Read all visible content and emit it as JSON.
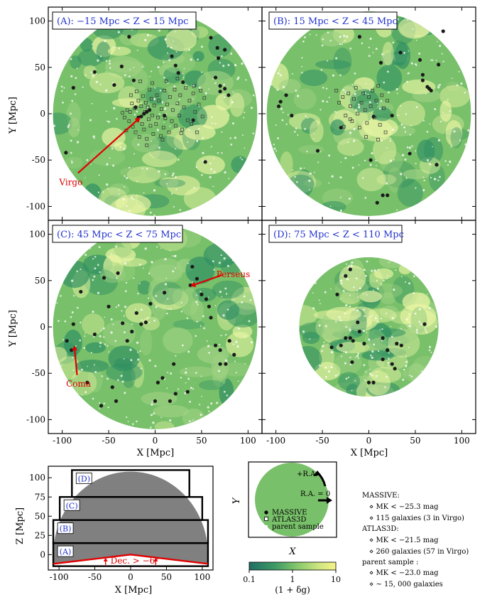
{
  "colors": {
    "field_light": "#eef7a6",
    "field_mid": "#9fd283",
    "field_green": "#79c06a",
    "field_dark": "#2f8f62",
    "massive_point": "#1a1a1a",
    "atlas_point": "#ffffff",
    "parent_point": "#ffffff",
    "arrow_red": "#e00000",
    "label_blue": "#2233cc",
    "survey_gray": "#808080"
  },
  "chart_data": {
    "type": "scatter",
    "figure_title": "",
    "axes": {
      "x_label": "X [Mpc]",
      "y_label": "Y [Mpc]",
      "xlim": [
        -115,
        115
      ],
      "ylim": [
        -115,
        115
      ],
      "x_ticks": [
        "-100",
        "-50",
        "0",
        "50",
        "100"
      ],
      "y_ticks": [
        "-100",
        "-50",
        "0",
        "50",
        "100"
      ]
    },
    "panels": [
      {
        "id": "A",
        "label": "(A):  −15 Mpc < Z < 15 Mpc",
        "circle_radius": 110,
        "massive": [
          [
            -96,
            -42
          ],
          [
            -88,
            28
          ],
          [
            -65,
            45
          ],
          [
            -44,
            31
          ],
          [
            -36,
            51
          ],
          [
            -28,
            83
          ],
          [
            -23,
            36
          ],
          [
            -21,
            7
          ],
          [
            -18,
            -4
          ],
          [
            -15,
            -3
          ],
          [
            -12,
            0
          ],
          [
            -9,
            2
          ],
          [
            -6,
            4
          ],
          [
            10,
            -2
          ],
          [
            18,
            62
          ],
          [
            22,
            52
          ],
          [
            25,
            44
          ],
          [
            30,
            34
          ],
          [
            41,
            -7
          ],
          [
            54,
            -52
          ],
          [
            60,
            82
          ],
          [
            67,
            71
          ],
          [
            68,
            60
          ],
          [
            70,
            30
          ],
          [
            70,
            24
          ],
          [
            75,
            69
          ],
          [
            75,
            27
          ],
          [
            79,
            20
          ],
          [
            65,
            39
          ]
        ],
        "atlas3d": [
          [
            -35,
            1
          ],
          [
            -33,
            -4
          ],
          [
            -30,
            4
          ],
          [
            -28,
            -8
          ],
          [
            -27,
            2
          ],
          [
            -25,
            11
          ],
          [
            -24,
            -14
          ],
          [
            -22,
            6
          ],
          [
            -21,
            -20
          ],
          [
            -20,
            24
          ],
          [
            -19,
            -7
          ],
          [
            -18,
            14
          ],
          [
            -17,
            -25
          ],
          [
            -15,
            8
          ],
          [
            -14,
            -11
          ],
          [
            -13,
            19
          ],
          [
            -12,
            -17
          ],
          [
            -11,
            2
          ],
          [
            -10,
            12
          ],
          [
            -9,
            -27
          ],
          [
            -8,
            7
          ],
          [
            -7,
            -6
          ],
          [
            -6,
            26
          ],
          [
            -5,
            -13
          ],
          [
            -4,
            16
          ],
          [
            -3,
            -2
          ],
          [
            -2,
            -22
          ],
          [
            -1,
            9
          ],
          [
            1,
            -11
          ],
          [
            2,
            20
          ],
          [
            3,
            -4
          ],
          [
            4,
            14
          ],
          [
            6,
            -24
          ],
          [
            7,
            5
          ],
          [
            9,
            -15
          ],
          [
            10,
            25
          ],
          [
            11,
            -5
          ],
          [
            13,
            10
          ],
          [
            15,
            -20
          ],
          [
            16,
            18
          ],
          [
            18,
            -8
          ],
          [
            19,
            4
          ],
          [
            21,
            26
          ],
          [
            22,
            -13
          ],
          [
            24,
            11
          ],
          [
            26,
            -2
          ],
          [
            27,
            20
          ],
          [
            29,
            -17
          ],
          [
            31,
            7
          ],
          [
            33,
            28
          ],
          [
            35,
            -7
          ],
          [
            37,
            14
          ],
          [
            39,
            -11
          ],
          [
            41,
            22
          ],
          [
            43,
            2
          ],
          [
            45,
            -20
          ],
          [
            47,
            10
          ],
          [
            49,
            25
          ],
          [
            51,
            -3
          ],
          [
            53,
            17
          ],
          [
            28,
            -21
          ],
          [
            8,
            -28
          ],
          [
            -3,
            33
          ],
          [
            12,
            35
          ],
          [
            -16,
            35
          ],
          [
            24,
            38
          ],
          [
            -31,
            -18
          ],
          [
            -26,
            20
          ],
          [
            42,
            30
          ],
          [
            -9,
            -34
          ]
        ],
        "annotation": {
          "text": "Virgo",
          "from": [
            -83,
            -64
          ],
          "to": [
            -16,
            -4
          ]
        }
      },
      {
        "id": "B",
        "label": "(B):  15 Mpc < Z < 45 Mpc",
        "circle_radius": 110,
        "massive": [
          [
            -97,
            8
          ],
          [
            -95,
            13
          ],
          [
            -89,
            20
          ],
          [
            -83,
            -2
          ],
          [
            -55,
            -40
          ],
          [
            -30,
            -15
          ],
          [
            -10,
            83
          ],
          [
            2,
            -50
          ],
          [
            5,
            -3
          ],
          [
            9,
            -96
          ],
          [
            13,
            55
          ],
          [
            15,
            -88
          ],
          [
            20,
            -88
          ],
          [
            25,
            -2
          ],
          [
            34,
            66
          ],
          [
            44,
            -43
          ],
          [
            55,
            58
          ],
          [
            58,
            42
          ],
          [
            58,
            36
          ],
          [
            63,
            29
          ],
          [
            65,
            27
          ],
          [
            67,
            25
          ],
          [
            73,
            -55
          ],
          [
            75,
            53
          ],
          [
            80,
            89
          ]
        ],
        "atlas3d": [
          [
            -35,
            25
          ],
          [
            -32,
            12
          ],
          [
            -28,
            18
          ],
          [
            -25,
            -2
          ],
          [
            -22,
            22
          ],
          [
            -20,
            8
          ],
          [
            -18,
            -8
          ],
          [
            -16,
            16
          ],
          [
            -14,
            28
          ],
          [
            -12,
            0
          ],
          [
            -10,
            -15
          ],
          [
            -8,
            12
          ],
          [
            -6,
            22
          ],
          [
            -4,
            4
          ],
          [
            -2,
            -10
          ],
          [
            0,
            18
          ],
          [
            2,
            8
          ],
          [
            4,
            25
          ],
          [
            6,
            -4
          ],
          [
            8,
            14
          ],
          [
            10,
            30
          ],
          [
            12,
            -12
          ],
          [
            14,
            20
          ],
          [
            16,
            6
          ],
          [
            18,
            -20
          ],
          [
            20,
            14
          ],
          [
            -27,
            -14
          ],
          [
            -3,
            -25
          ],
          [
            -20,
            -6
          ],
          [
            10,
            -28
          ]
        ],
        "annotation": null
      },
      {
        "id": "C",
        "label": "(C):  45 Mpc < Z < 75 Mpc",
        "circle_radius": 110,
        "massive": [
          [
            -95,
            -15
          ],
          [
            -90,
            -25
          ],
          [
            -88,
            3
          ],
          [
            -80,
            38
          ],
          [
            -73,
            -60
          ],
          [
            -65,
            -8
          ],
          [
            -58,
            -85
          ],
          [
            -55,
            53
          ],
          [
            -50,
            22
          ],
          [
            -46,
            -65
          ],
          [
            -42,
            -80
          ],
          [
            -40,
            58
          ],
          [
            -35,
            4
          ],
          [
            -30,
            -15
          ],
          [
            -25,
            -5
          ],
          [
            -20,
            15
          ],
          [
            -15,
            3
          ],
          [
            -10,
            5
          ],
          [
            -5,
            25
          ],
          [
            0,
            -80
          ],
          [
            3,
            -60
          ],
          [
            8,
            -55
          ],
          [
            10,
            37
          ],
          [
            16,
            -80
          ],
          [
            20,
            -40
          ],
          [
            22,
            -72
          ],
          [
            35,
            -70
          ],
          [
            38,
            45
          ],
          [
            40,
            65
          ],
          [
            45,
            52
          ],
          [
            50,
            35
          ],
          [
            55,
            30
          ],
          [
            58,
            22
          ],
          [
            60,
            10
          ],
          [
            65,
            -20
          ],
          [
            70,
            -25
          ],
          [
            70,
            -40
          ],
          [
            76,
            -40
          ],
          [
            80,
            -15
          ],
          [
            85,
            -30
          ]
        ],
        "atlas3d": [],
        "annotations": [
          {
            "text": "Perseus",
            "from": [
              72,
              56
            ],
            "to": [
              38,
              44
            ]
          },
          {
            "text": "Coma",
            "from": [
              -84,
              -52
            ],
            "to": [
              -87,
              -20
            ]
          }
        ]
      },
      {
        "id": "D",
        "label": "(D):  75 Mpc < Z < 110 Mpc",
        "circle_radius": 75,
        "massive": [
          [
            -30,
            -20
          ],
          [
            -25,
            -12
          ],
          [
            -20,
            -12
          ],
          [
            -18,
            -38
          ],
          [
            -12,
            5
          ],
          [
            -10,
            -5
          ],
          [
            -5,
            -18
          ],
          [
            -40,
            -22
          ],
          [
            -34,
            35
          ],
          [
            -25,
            55
          ],
          [
            -20,
            62
          ],
          [
            -17,
            -15
          ],
          [
            0,
            -60
          ],
          [
            5,
            -60
          ],
          [
            15,
            -35
          ],
          [
            25,
            -40
          ],
          [
            28,
            -45
          ],
          [
            15,
            -12
          ],
          [
            35,
            -20
          ],
          [
            30,
            -18
          ],
          [
            20,
            -25
          ],
          [
            60,
            3
          ]
        ],
        "atlas3d": [],
        "annotation": null
      }
    ],
    "z_panel": {
      "x_label": "X [Mpc]",
      "y_label": "Z [Mpc]",
      "xlim": [
        -115,
        115
      ],
      "ylim": [
        -20,
        115
      ],
      "x_ticks": [
        "-100",
        "-50",
        "0",
        "50",
        "100"
      ],
      "y_ticks": [
        "0",
        "25",
        "50",
        "75",
        "100"
      ],
      "slabs": [
        {
          "label": "(A)",
          "zmin": -15,
          "zmax": 15,
          "xmin": -108,
          "xmax": 108
        },
        {
          "label": "(B)",
          "zmin": 15,
          "zmax": 45,
          "xmin": -108,
          "xmax": 108
        },
        {
          "label": "(C)",
          "zmin": 45,
          "zmax": 75,
          "xmin": -99,
          "xmax": 100
        },
        {
          "label": "(D)",
          "zmin": 75,
          "zmax": 110,
          "xmin": -82,
          "xmax": 82
        }
      ],
      "dec_text": "Dec. > −6°",
      "survey_radius": 108
    },
    "legend_panel": {
      "x_label": "X",
      "y_label": "Y",
      "ra_plus": "+R.A.",
      "ra_zero": "R.A. = 0",
      "items": [
        "MASSIVE",
        "ATLAS3D",
        "parent sample"
      ],
      "colorbar_ticks": [
        "0.1",
        "1",
        "10"
      ],
      "colorbar_label": "(1 + δg)"
    },
    "sample_text": [
      "MASSIVE:",
      "⋄ MK < −25.3 mag",
      "⋄ 115 galaxies (3 in Virgo)",
      "ATLAS3D:",
      "⋄ MK < −21.5 mag",
      "⋄ 260 galaxies (57 in Virgo)",
      "parent sample :",
      "⋄ MK < −23.0 mag",
      "⋄ ∼ 15, 000 galaxies"
    ]
  }
}
